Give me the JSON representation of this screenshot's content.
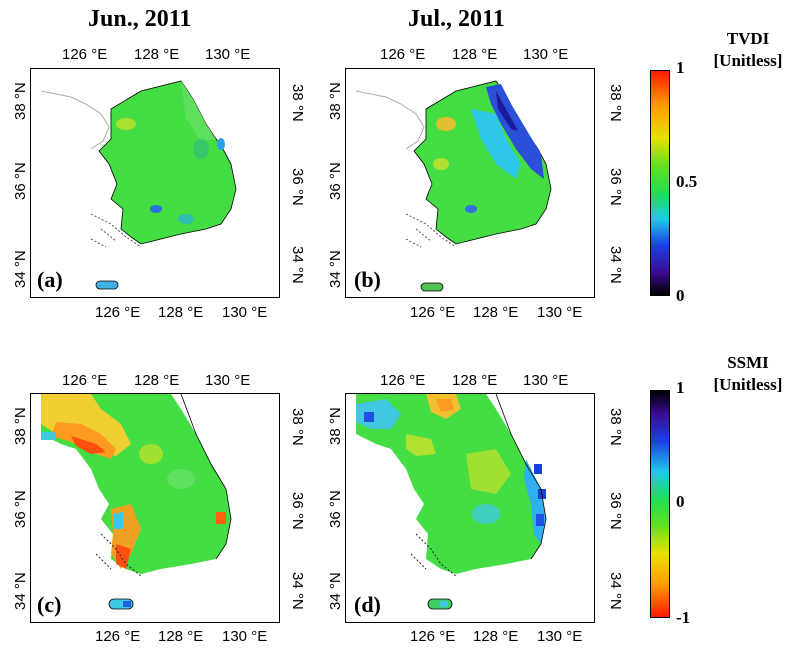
{
  "columns": {
    "left_title": "Jun., 2011",
    "right_title": "Jul., 2011"
  },
  "axes": {
    "lon_ticks": [
      "126 °E",
      "128 °E",
      "130 °E"
    ],
    "lat_ticks": [
      "38 °N",
      "36 °N",
      "34 °N"
    ]
  },
  "panels": [
    {
      "label": "(a)",
      "variable": "TVDI",
      "month": "Jun., 2011"
    },
    {
      "label": "(b)",
      "variable": "TVDI",
      "month": "Jul., 2011"
    },
    {
      "label": "(c)",
      "variable": "SSMI",
      "month": "Jun., 2011"
    },
    {
      "label": "(d)",
      "variable": "SSMI",
      "month": "Jul., 2011"
    }
  ],
  "colorbars": {
    "tvdi": {
      "title_line1": "TVDI",
      "title_line2": "[Unitless]",
      "max": "1",
      "mid": "0.5",
      "min": "0"
    },
    "ssmi": {
      "title_line1": "SSMI",
      "title_line2": "[Unitless]",
      "max": "1",
      "mid": "0",
      "min": "-1"
    }
  },
  "colors": {
    "land_green": "#3fdc3f",
    "wet_blue": "#2040d0",
    "dry_orange": "#ff8c1a",
    "cyan": "#30d0e0"
  }
}
